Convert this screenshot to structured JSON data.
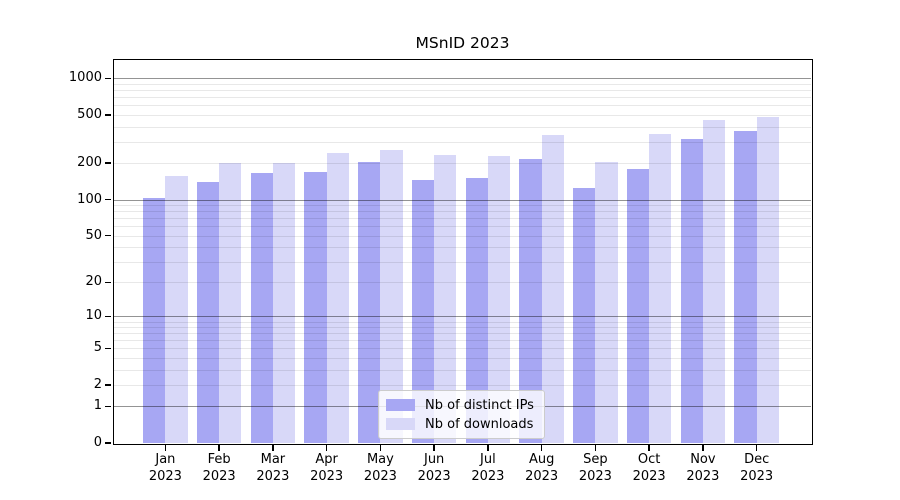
{
  "figure": {
    "title": "MSnID 2023"
  },
  "chart_data": {
    "type": "bar",
    "title": "MSnID 2023",
    "y_scale": "log1p",
    "months": [
      "Jan",
      "Feb",
      "Mar",
      "Apr",
      "May",
      "Jun",
      "Jul",
      "Aug",
      "Sep",
      "Oct",
      "Nov",
      "Dec"
    ],
    "year": "2023",
    "series": [
      {
        "name": "Nb of distinct IPs",
        "color": "#a7a7f3",
        "values": [
          102,
          140,
          165,
          170,
          205,
          145,
          150,
          215,
          125,
          180,
          320,
          370
        ]
      },
      {
        "name": "Nb of downloads",
        "color": "#d8d8f8",
        "values": [
          157,
          202,
          201,
          243,
          255,
          235,
          230,
          345,
          203,
          350,
          455,
          485
        ]
      }
    ],
    "y_ticks": [
      0,
      1,
      2,
      5,
      10,
      20,
      50,
      100,
      200,
      500,
      1000
    ],
    "ylim": [
      0,
      1420
    ],
    "grid": {
      "major_lines_at": [
        1,
        10,
        100,
        1000
      ],
      "minor_lines": "2-9 per decade"
    },
    "legend_position": "bottom-center"
  },
  "colors": {
    "bar_distinct_ips": "#a7a7f3",
    "bar_downloads": "#d8d8f8",
    "grid_major": "rgba(0,0,0,0.42)",
    "grid_minor": "rgba(0,0,0,0.09)",
    "frame": "#000000",
    "background": "#ffffff",
    "legend_border": "#cccccc"
  }
}
